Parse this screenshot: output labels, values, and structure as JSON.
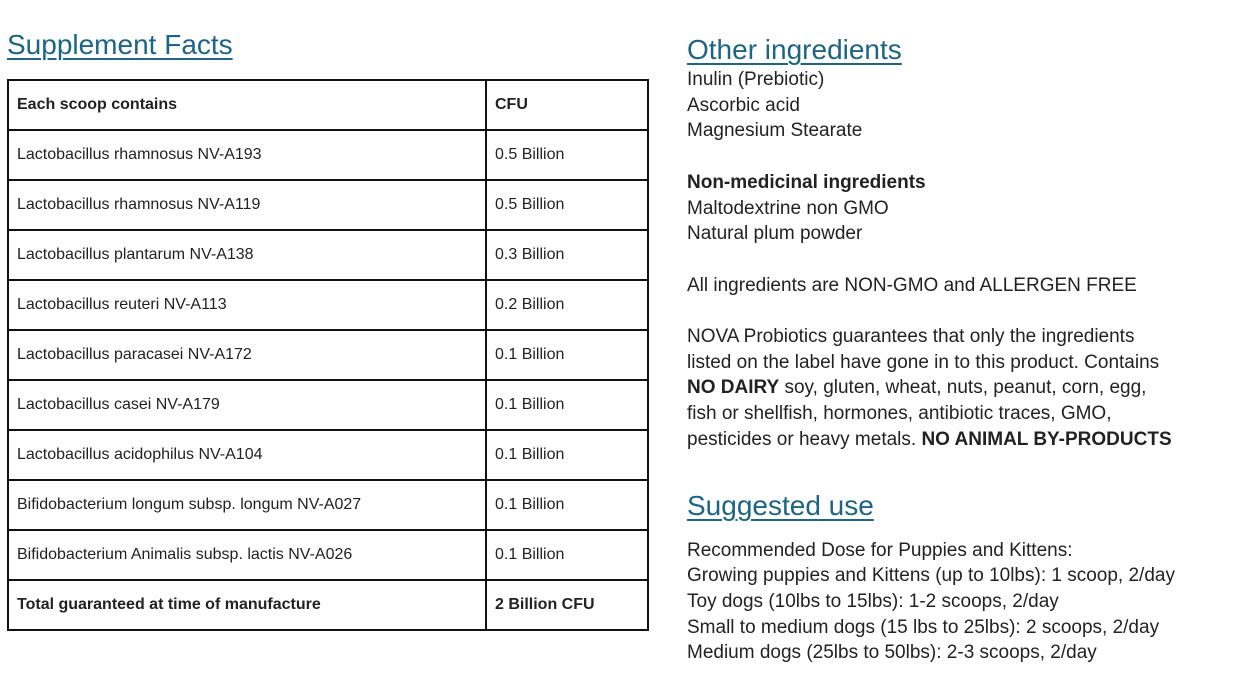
{
  "supplement_facts": {
    "title": "Supplement Facts",
    "header": [
      "Each scoop contains",
      "CFU"
    ],
    "rows": [
      [
        "Lactobacillus rhamnosus NV-A193",
        "0.5 Billion"
      ],
      [
        "Lactobacillus rhamnosus NV-A119",
        "0.5 Billion"
      ],
      [
        "Lactobacillus plantarum NV-A138",
        "0.3 Billion"
      ],
      [
        "Lactobacillus reuteri NV-A113",
        "0.2 Billion"
      ],
      [
        "Lactobacillus paracasei NV-A172",
        "0.1 Billion"
      ],
      [
        "Lactobacillus casei NV-A179",
        "0.1 Billion"
      ],
      [
        "Lactobacillus acidophilus NV-A104",
        "0.1 Billion"
      ],
      [
        "Bifidobacterium longum subsp. longum NV-A027",
        "0.1 Billion"
      ],
      [
        "Bifidobacterium Animalis subsp. lactis NV-A026",
        "0.1 Billion"
      ]
    ],
    "total": [
      "Total guaranteed at time of manufacture",
      "2 Billion CFU"
    ]
  },
  "other_ingredients": {
    "title": "Other ingredients",
    "items": [
      "Inulin (Prebiotic)",
      "Ascorbic acid",
      "Magnesium Stearate"
    ]
  },
  "non_medicinal": {
    "title": "Non-medicinal ingredients",
    "items": [
      "Maltodextrine non GMO",
      "Natural plum powder"
    ]
  },
  "allergen_note": "All ingredients are NON-GMO and ALLERGEN FREE",
  "guarantee": {
    "lines": [
      [
        {
          "text": "NOVA Probiotics guarantees that only the ingredients",
          "bold": false
        }
      ],
      [
        {
          "text": "listed on the label have gone in to this product. Contains",
          "bold": false
        }
      ],
      [
        {
          "text": "NO DAIRY",
          "bold": true
        },
        {
          "text": " soy, gluten, wheat, nuts, peanut, corn, egg,",
          "bold": false
        }
      ],
      [
        {
          "text": "fish or shellfish, hormones, antibiotic traces, GMO,",
          "bold": false
        }
      ],
      [
        {
          "text": "pesticides or heavy metals. ",
          "bold": false
        },
        {
          "text": "NO ANIMAL BY-PRODUCTS",
          "bold": true
        }
      ]
    ]
  },
  "suggested_use": {
    "title": "Suggested use",
    "lines": [
      "Recommended Dose for Puppies and Kittens:",
      "Growing puppies and Kittens (up to 10lbs): 1 scoop, 2/day",
      "Toy dogs (10lbs to 15lbs): 1-2 scoops, 2/day",
      "Small to medium dogs (15 lbs to 25lbs): 2 scoops, 2/day",
      "Medium dogs (25lbs to 50lbs): 2-3 scoops, 2/day"
    ]
  }
}
